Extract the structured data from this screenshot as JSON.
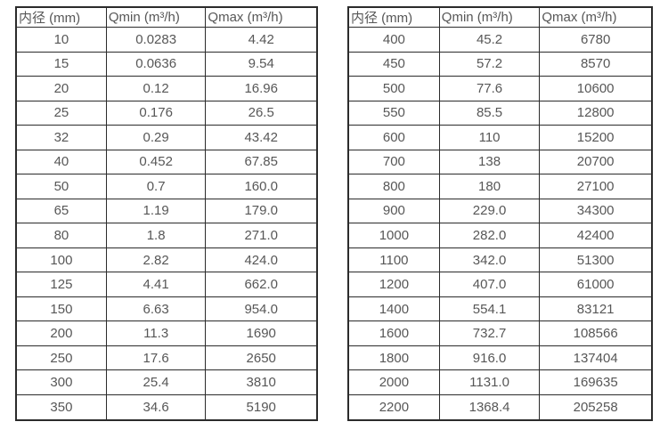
{
  "page": {
    "background": "#ffffff",
    "text_color": "#575757",
    "border_color": "#2b2b2b"
  },
  "tables": [
    {
      "name": "flow-rate-table-dn10-350",
      "headers": [
        "内径 (mm)",
        "Qmin (m³/h)",
        "Qmax (m³/h)"
      ],
      "rows": [
        [
          "10",
          "0.0283",
          "4.42"
        ],
        [
          "15",
          "0.0636",
          "9.54"
        ],
        [
          "20",
          "0.12",
          "16.96"
        ],
        [
          "25",
          "0.176",
          "26.5"
        ],
        [
          "32",
          "0.29",
          "43.42"
        ],
        [
          "40",
          "0.452",
          "67.85"
        ],
        [
          "50",
          "0.7",
          "160.0"
        ],
        [
          "65",
          "1.19",
          "179.0"
        ],
        [
          "80",
          "1.8",
          "271.0"
        ],
        [
          "100",
          "2.82",
          "424.0"
        ],
        [
          "125",
          "4.41",
          "662.0"
        ],
        [
          "150",
          "6.63",
          "954.0"
        ],
        [
          "200",
          "11.3",
          "1690"
        ],
        [
          "250",
          "17.6",
          "2650"
        ],
        [
          "300",
          "25.4",
          "3810"
        ],
        [
          "350",
          "34.6",
          "5190"
        ]
      ]
    },
    {
      "name": "flow-rate-table-dn400-2200",
      "headers": [
        "内径 (mm)",
        "Qmin (m³/h)",
        "Qmax (m³/h)"
      ],
      "rows": [
        [
          "400",
          "45.2",
          "6780"
        ],
        [
          "450",
          "57.2",
          "8570"
        ],
        [
          "500",
          "77.6",
          "10600"
        ],
        [
          "550",
          "85.5",
          "12800"
        ],
        [
          "600",
          "110",
          "15200"
        ],
        [
          "700",
          "138",
          "20700"
        ],
        [
          "800",
          "180",
          "27100"
        ],
        [
          "900",
          "229.0",
          "34300"
        ],
        [
          "1000",
          "282.0",
          "42400"
        ],
        [
          "1100",
          "342.0",
          "51300"
        ],
        [
          "1200",
          "407.0",
          "61000"
        ],
        [
          "1400",
          "554.1",
          "83121"
        ],
        [
          "1600",
          "732.7",
          "108566"
        ],
        [
          "1800",
          "916.0",
          "137404"
        ],
        [
          "2000",
          "1131.0",
          "169635"
        ],
        [
          "2200",
          "1368.4",
          "205258"
        ]
      ]
    }
  ]
}
